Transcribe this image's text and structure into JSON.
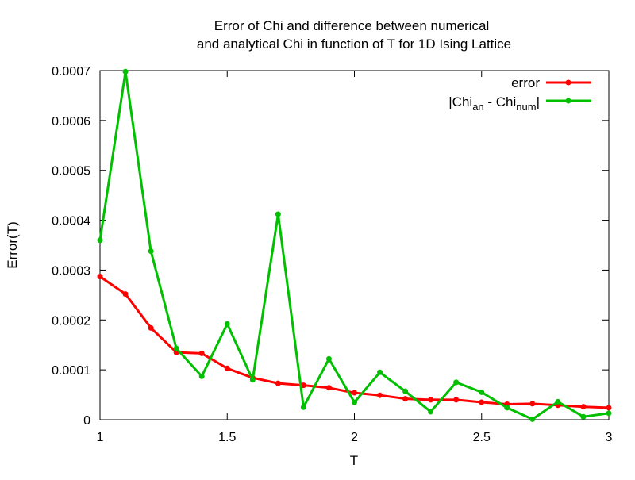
{
  "chart_data": {
    "type": "line",
    "title_lines": [
      "Error of Chi and difference between numerical",
      "and analytical Chi in function of T for 1D Ising Lattice"
    ],
    "xlabel": "T",
    "ylabel": "Error(T)",
    "xlim": [
      1,
      3
    ],
    "ylim": [
      0,
      0.0007
    ],
    "x_ticks": [
      1,
      1.5,
      2,
      2.5,
      3
    ],
    "x_tick_labels": [
      "1",
      "1.5",
      "2",
      "2.5",
      "3"
    ],
    "y_ticks": [
      0,
      0.0001,
      0.0002,
      0.0003,
      0.0004,
      0.0005,
      0.0006,
      0.0007
    ],
    "y_tick_labels": [
      "0",
      "0.0001",
      "0.0002",
      "0.0003",
      "0.0004",
      "0.0005",
      "0.0006",
      "0.0007"
    ],
    "grid": false,
    "legend_position": "top-right",
    "x": [
      1.0,
      1.1,
      1.2,
      1.3,
      1.4,
      1.5,
      1.6,
      1.7,
      1.8,
      1.9,
      2.0,
      2.1,
      2.2,
      2.3,
      2.4,
      2.5,
      2.6,
      2.7,
      2.8,
      2.9,
      3.0
    ],
    "series": [
      {
        "name": "error",
        "color": "#ff0000",
        "values": [
          0.000287,
          0.000252,
          0.000184,
          0.000135,
          0.000133,
          0.000103,
          8.4e-05,
          7.3e-05,
          6.9e-05,
          6.4e-05,
          5.4e-05,
          4.9e-05,
          4.2e-05,
          4e-05,
          4e-05,
          3.5e-05,
          3.1e-05,
          3.2e-05,
          2.9e-05,
          2.6e-05,
          2.4e-05
        ]
      },
      {
        "name": "|Chi_an - Chi_num|",
        "legend_parts": {
          "open": "|Chi",
          "sub1": "an",
          "mid": " - Chi",
          "sub2": "num",
          "close": "|"
        },
        "color": "#00c000",
        "values": [
          0.00036,
          0.000698,
          0.000338,
          0.000143,
          8.7e-05,
          0.000192,
          8e-05,
          0.000412,
          2.5e-05,
          0.000122,
          3.5e-05,
          9.5e-05,
          5.7e-05,
          1.6e-05,
          7.5e-05,
          5.5e-05,
          2.4e-05,
          1e-06,
          3.6e-05,
          6e-06,
          1.3e-05
        ]
      }
    ]
  }
}
